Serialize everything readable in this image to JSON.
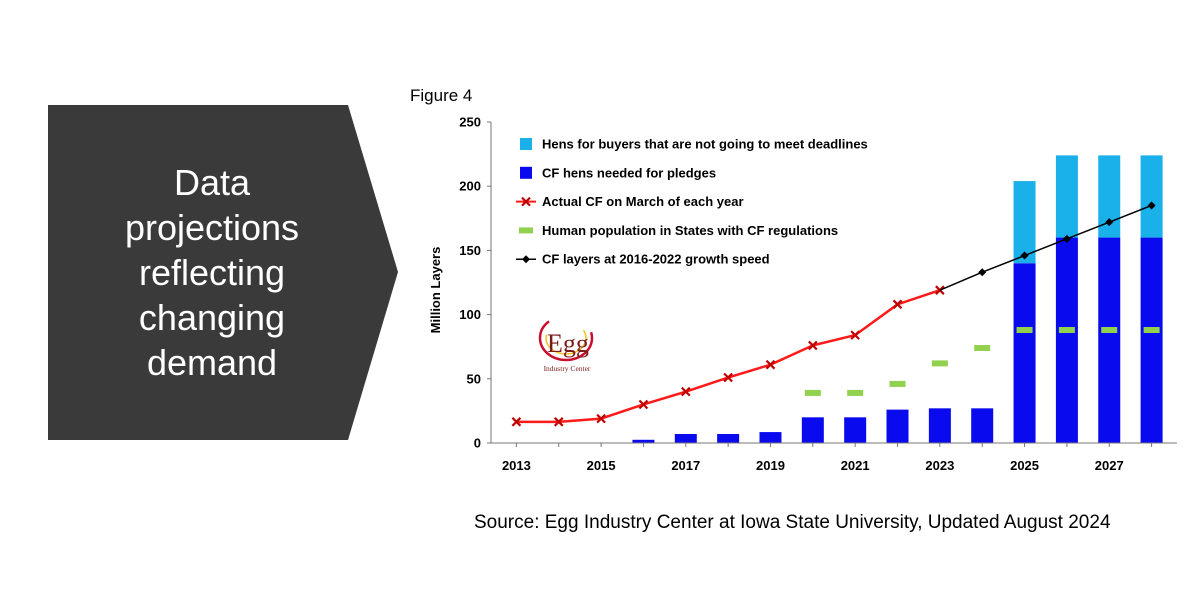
{
  "callout": {
    "lines": [
      "Data",
      "projections",
      "reflecting",
      "changing",
      "demand"
    ],
    "bg_color": "#3a3a3a"
  },
  "figure_label": "Figure 4",
  "source": "Source: Egg Industry Center at Iowa State University, Updated August 2024",
  "logo": {
    "big": "Egg",
    "small": "Industry Center"
  },
  "chart_data": {
    "type": "bar",
    "ylabel": "Million Layers",
    "ylim": [
      0,
      250
    ],
    "yticks": [
      0,
      50,
      100,
      150,
      200,
      250
    ],
    "xlim": [
      2012.4,
      2028.6
    ],
    "xticks": [
      2013,
      2015,
      2017,
      2019,
      2021,
      2023,
      2025,
      2027
    ],
    "legend": [
      {
        "label": "Hens for buyers that are not going to meet deadlines",
        "color": "#1ab0ea",
        "marker": "square"
      },
      {
        "label": "CF hens needed for pledges",
        "color": "#0a0aee",
        "marker": "square"
      },
      {
        "label": "Actual CF on March of each year",
        "color": "#ff1a1a",
        "marker": "x-line"
      },
      {
        "label": "Human population in States with CF regulations",
        "color": "#92d050",
        "marker": "dash"
      },
      {
        "label": "CF layers at 2016-2022 growth speed",
        "color": "#000000",
        "marker": "diamond-line"
      }
    ],
    "series": [
      {
        "name": "CF hens needed for pledges",
        "kind": "bar",
        "color": "#0a0aee",
        "x": [
          2016,
          2017,
          2018,
          2019,
          2020,
          2021,
          2022,
          2023,
          2024,
          2025,
          2026,
          2027,
          2028
        ],
        "values": [
          2.5,
          7,
          7,
          8.5,
          20,
          20,
          26,
          27,
          27,
          140,
          160,
          160,
          160
        ]
      },
      {
        "name": "Hens for buyers that are not going to meet deadlines",
        "kind": "bar-stack",
        "color": "#1ab0ea",
        "x": [
          2025,
          2026,
          2027,
          2028
        ],
        "values": [
          64,
          64,
          64,
          64
        ]
      },
      {
        "name": "Actual CF on March of each year",
        "kind": "line-x",
        "color": "#ff1a1a",
        "x": [
          2013,
          2014,
          2015,
          2016,
          2017,
          2018,
          2019,
          2020,
          2021,
          2022,
          2023
        ],
        "values": [
          16.5,
          16.5,
          19,
          30,
          40,
          51,
          61,
          76,
          84,
          108,
          119
        ]
      },
      {
        "name": "Human population in States with CF regulations",
        "kind": "dash",
        "color": "#92d050",
        "x": [
          2020,
          2021,
          2022,
          2023,
          2024,
          2025,
          2026,
          2027,
          2028
        ],
        "values": [
          39,
          39,
          46,
          62,
          74,
          88,
          88,
          88,
          88
        ]
      },
      {
        "name": "CF layers at 2016-2022 growth speed",
        "kind": "line-diamond",
        "color": "#000000",
        "x": [
          2023,
          2024,
          2025,
          2026,
          2027,
          2028
        ],
        "values": [
          119,
          133,
          146,
          159,
          172,
          185
        ]
      }
    ]
  }
}
